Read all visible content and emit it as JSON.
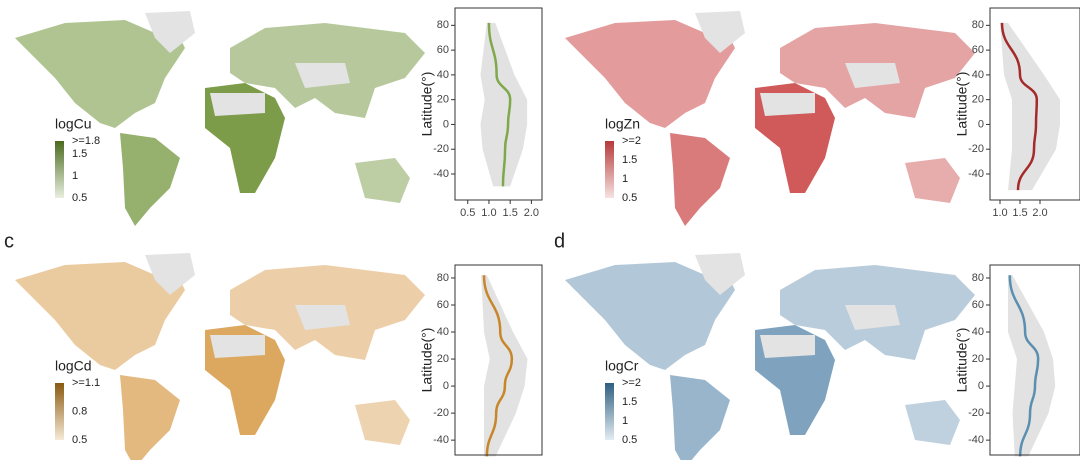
{
  "chart_data": [
    {
      "type": "line",
      "legend": {
        "title": "logCu",
        "colors": [
          "#e9eedf",
          "#4a6b1f"
        ],
        "ticks": [
          {
            "value": 1.8,
            "label": ">=1.8"
          },
          1.5,
          1,
          0.5
        ]
      },
      "ylabel": "Latitude(°)",
      "ylim": [
        -61,
        94
      ],
      "yticks": [
        -40,
        -20,
        0,
        20,
        40,
        60,
        80
      ],
      "xlim": [
        0.2,
        2.25
      ],
      "xticks": [
        0.5,
        {
          "value": 1,
          "label": "1.0"
        },
        1.5,
        {
          "value": 2,
          "label": "2.0"
        }
      ],
      "latitudes": [
        82,
        40,
        20,
        0,
        -20,
        -50
      ],
      "values": [
        1.0,
        1.18,
        1.5,
        1.45,
        1.38,
        1.33
      ],
      "band_low": [
        0.95,
        0.8,
        0.9,
        0.8,
        0.85,
        1.1
      ],
      "band_high": [
        1.15,
        1.6,
        1.9,
        1.9,
        1.8,
        1.5
      ],
      "color": "#7fa84a",
      "map_color": "#7c9c4a"
    },
    {
      "type": "line",
      "legend": {
        "title": "logZn",
        "colors": [
          "#f6e2e0",
          "#b53a3a"
        ],
        "ticks": [
          {
            "value": 2,
            "label": ">=2"
          },
          1.5,
          1,
          0.5
        ]
      },
      "ylabel": "Latitude(°)",
      "ylim": [
        -61,
        94
      ],
      "yticks": [
        -40,
        -20,
        0,
        20,
        40,
        60,
        80
      ],
      "xlim": [
        0.75,
        3.0
      ],
      "xticks": [
        {
          "value": 1,
          "label": "1.0"
        },
        1.5,
        {
          "value": 2,
          "label": "2.0"
        }
      ],
      "latitudes": [
        82,
        40,
        20,
        0,
        -20,
        -53
      ],
      "values": [
        1.05,
        1.5,
        1.92,
        1.9,
        1.85,
        1.45
      ],
      "band_low": [
        1.0,
        1.1,
        1.3,
        1.3,
        1.3,
        1.2
      ],
      "band_high": [
        1.2,
        2.1,
        2.5,
        2.5,
        2.4,
        1.8
      ],
      "color": "#a52a2a",
      "map_color": "#d0595a"
    },
    {
      "type": "line",
      "panel": "c",
      "legend": {
        "title": "logCd",
        "colors": [
          "#f6ead6",
          "#8a5a10"
        ],
        "ticks": [
          {
            "value": 1.1,
            "label": ">=1.1"
          },
          0.8,
          0.5
        ]
      },
      "ylabel": "Latitude(°)",
      "ylim": [
        -51,
        89.6
      ],
      "yticks": [
        -40,
        -20,
        0,
        20,
        40,
        60,
        80
      ],
      "xlim": [
        0,
        1.5
      ],
      "latitudes": [
        82,
        40,
        20,
        0,
        -20,
        -52
      ],
      "values": [
        0.5,
        0.78,
        0.98,
        0.86,
        0.71,
        0.55
      ],
      "band_low": [
        0.45,
        0.5,
        0.6,
        0.5,
        0.5,
        0.5
      ],
      "band_high": [
        0.55,
        1.0,
        1.25,
        1.2,
        1.05,
        0.7
      ],
      "color": "#c8862a",
      "map_color": "#dca860"
    },
    {
      "type": "line",
      "panel": "d",
      "legend": {
        "title": "logCr",
        "colors": [
          "#e3ecf2",
          "#2f5f80"
        ],
        "ticks": [
          {
            "value": 2,
            "label": ">=2"
          },
          1.5,
          1,
          0.5
        ]
      },
      "ylabel": "Latitude(°)",
      "ylim": [
        -51,
        89.6
      ],
      "yticks": [
        -40,
        -20,
        0,
        20,
        40,
        60,
        80
      ],
      "xlim": [
        0,
        2
      ],
      "latitudes": [
        82,
        40,
        20,
        0,
        -20,
        -52
      ],
      "values": [
        0.44,
        0.78,
        1.07,
        1.0,
        0.89,
        0.67
      ],
      "band_low": [
        0.4,
        0.4,
        0.6,
        0.55,
        0.5,
        0.55
      ],
      "band_high": [
        0.5,
        1.2,
        1.4,
        1.45,
        1.3,
        0.85
      ],
      "color": "#5b8fb0",
      "map_color": "#7fa3be"
    }
  ]
}
